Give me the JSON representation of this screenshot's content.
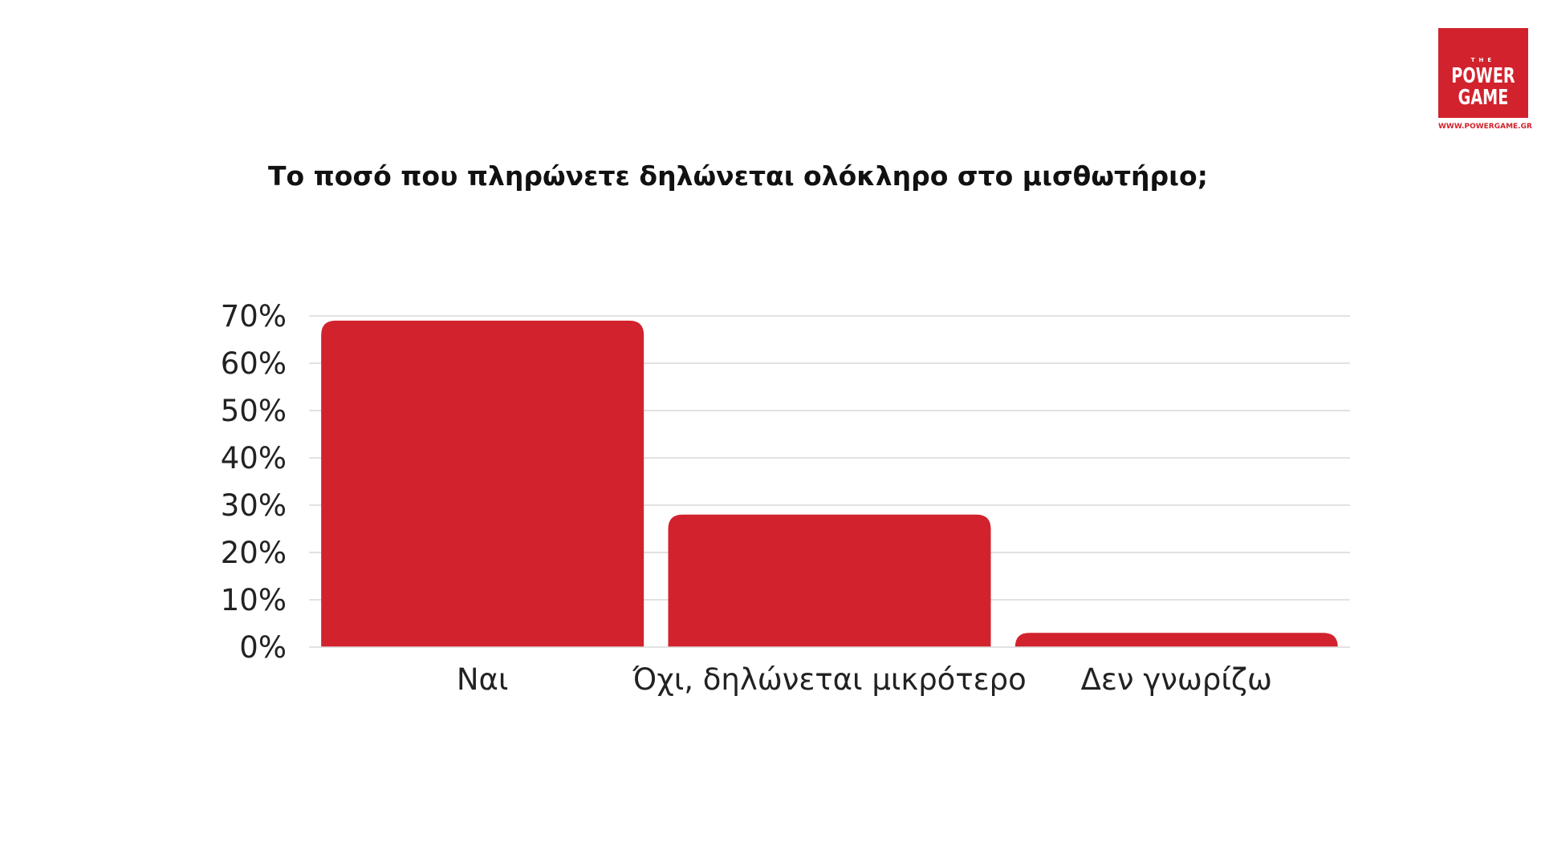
{
  "logo": {
    "the": "THE",
    "word1": "POWER",
    "word2": "GAME",
    "url": "WWW.POWERGAME.GR"
  },
  "chart_data": {
    "type": "bar",
    "title": "Το ποσό που πληρώνετε δηλώνεται ολόκληρο στο μισθωτήριο;",
    "categories": [
      "Ναι",
      "Όχι, δηλώνεται μικρότερο",
      "Δεν γνωρίζω"
    ],
    "values": [
      69,
      28,
      3
    ],
    "ylim": [
      0,
      70
    ],
    "yticks": [
      "0%",
      "10%",
      "20%",
      "30%",
      "40%",
      "50%",
      "60%",
      "70%"
    ],
    "xlabel": "",
    "ylabel": "",
    "grid": true,
    "bar_color": "#d2222d",
    "grid_color": "#d9d9d9"
  }
}
